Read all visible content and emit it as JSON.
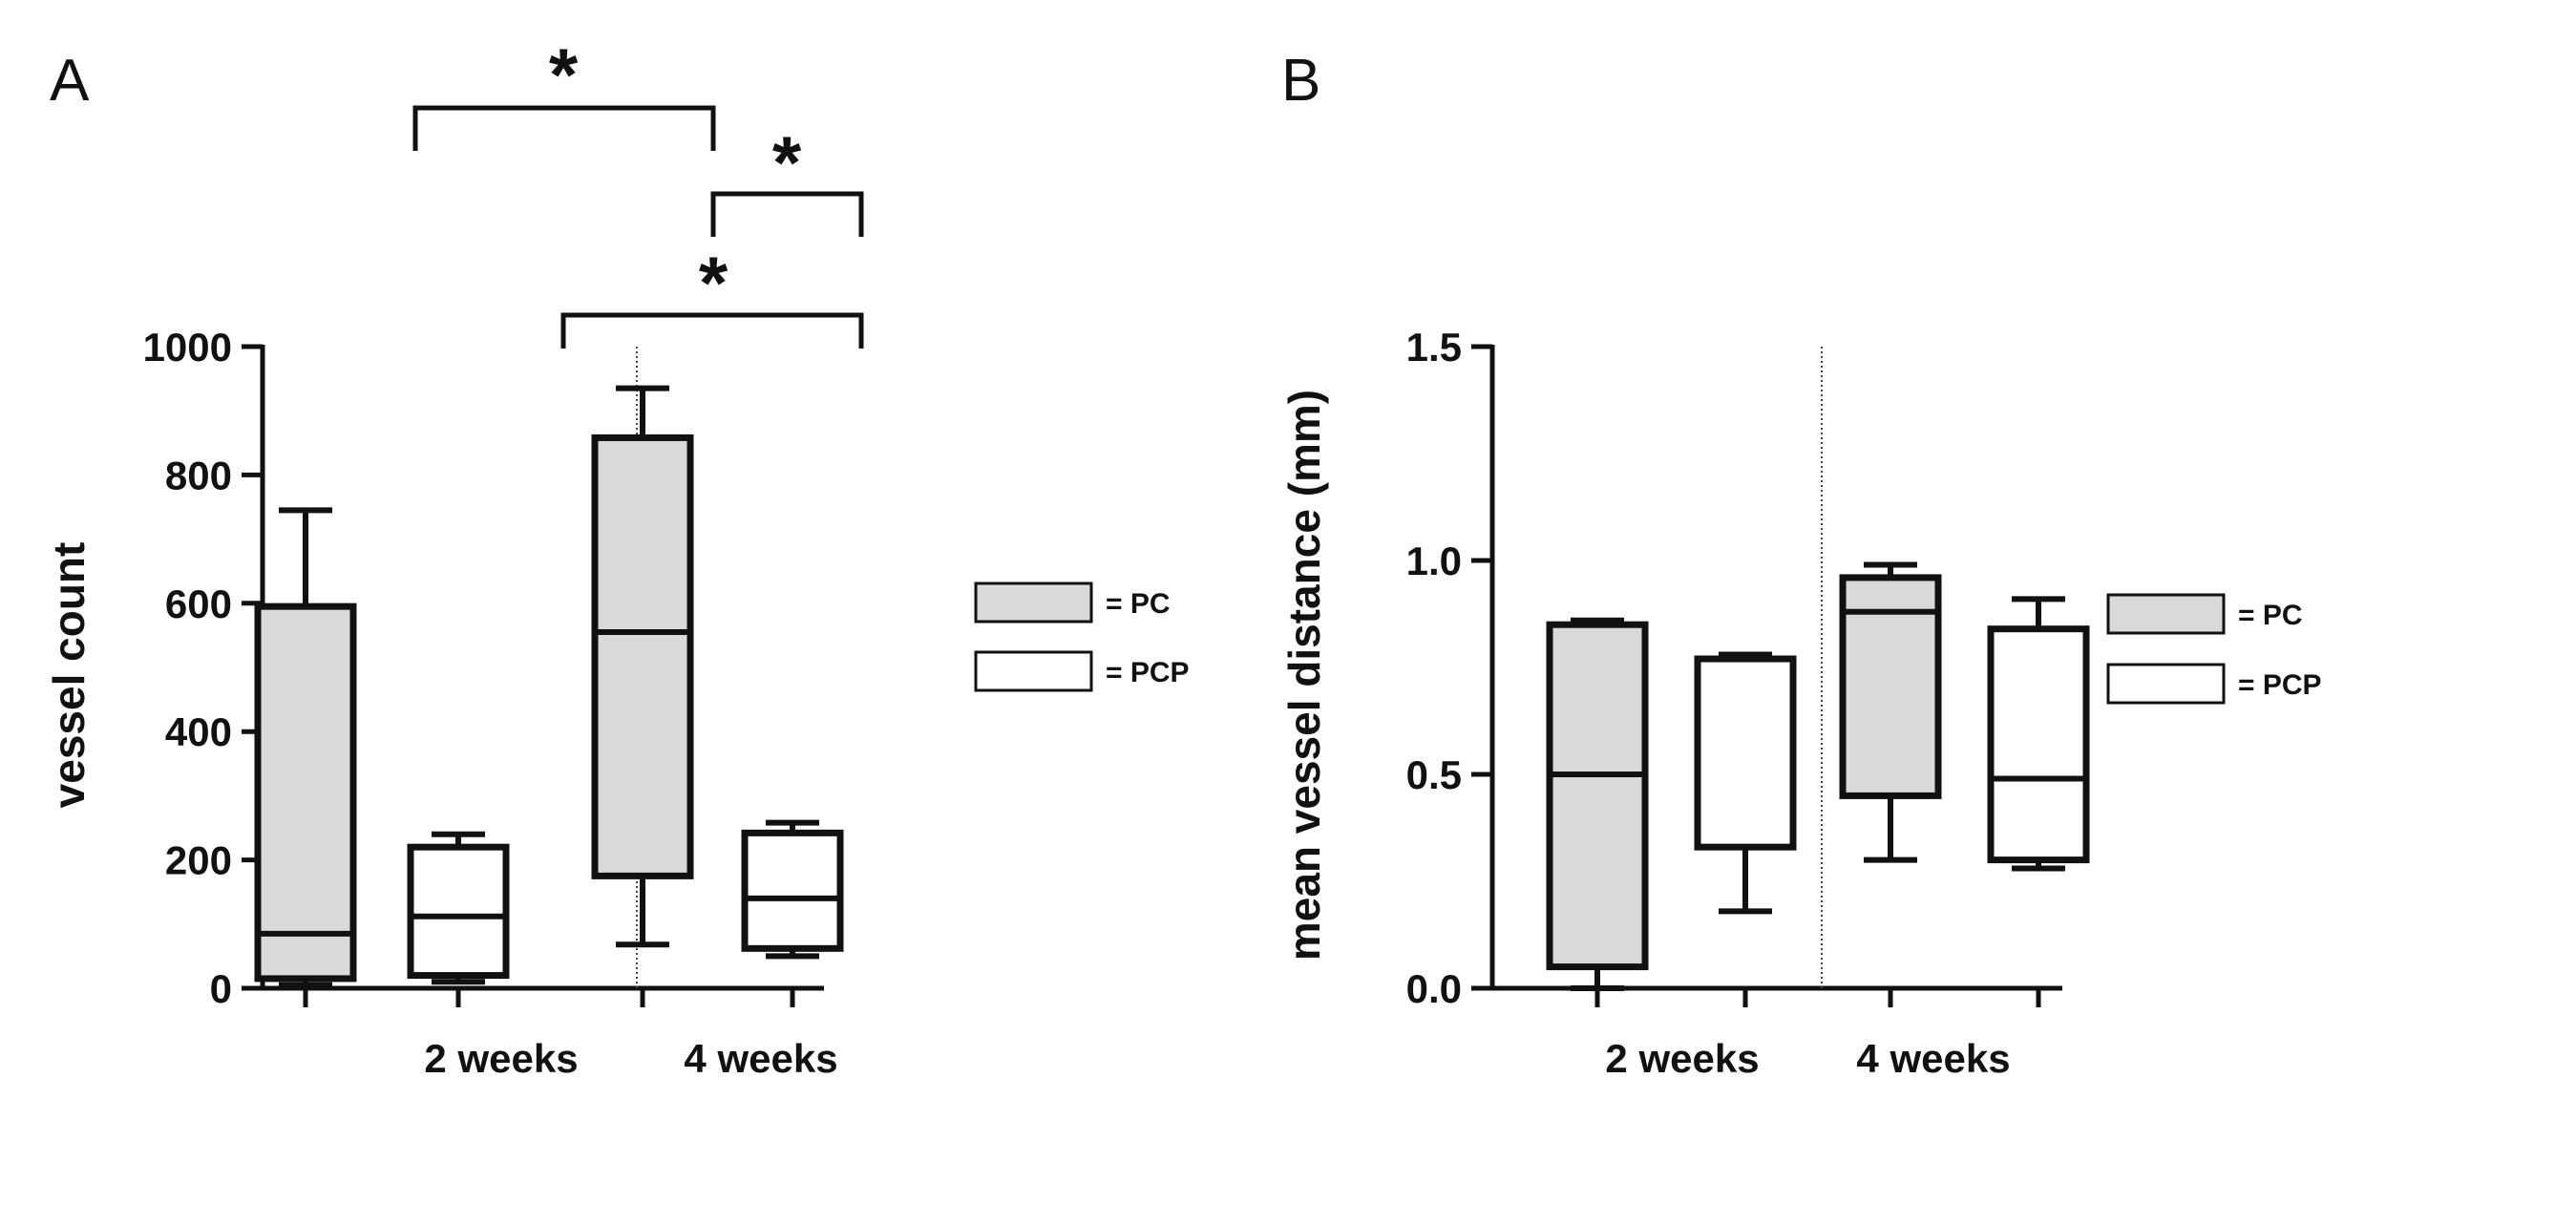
{
  "chart_data": [
    {
      "type": "box",
      "panel": "A",
      "ylabel": "vessel count",
      "xlabel": "",
      "ylim": [
        0,
        1000
      ],
      "yticks": [
        "0",
        "200",
        "400",
        "600",
        "800",
        "1000"
      ],
      "categories": [
        "2 weeks",
        "4 weeks"
      ],
      "series": [
        {
          "name": "= PC",
          "fill": "#d9d9d9",
          "boxes": [
            {
              "category": "2 weeks",
              "min": 5,
              "q1": 15,
              "median": 85,
              "q3": 595,
              "max": 745
            },
            {
              "category": "4 weeks",
              "min": 68,
              "q1": 175,
              "median": 555,
              "q3": 858,
              "max": 935
            }
          ]
        },
        {
          "name": "= PCP",
          "fill": "#ffffff",
          "boxes": [
            {
              "category": "2 weeks",
              "min": 10,
              "q1": 20,
              "median": 112,
              "q3": 220,
              "max": 240
            },
            {
              "category": "4 weeks",
              "min": 50,
              "q1": 62,
              "median": 140,
              "q3": 242,
              "max": 258
            }
          ]
        }
      ],
      "annotations": {
        "star": "*",
        "significance": [
          {
            "from": "2 weeks PC",
            "to": "4 weeks PC",
            "label": "*"
          },
          {
            "from": "4 weeks PC",
            "to": "4 weeks PCP",
            "label": "*"
          },
          {
            "from": "2 weeks PCP",
            "to": "4 weeks PCP",
            "label": "*"
          }
        ]
      }
    },
    {
      "type": "box",
      "panel": "B",
      "ylabel": "mean vessel distance (mm)",
      "xlabel": "",
      "ylim": [
        0,
        1.5
      ],
      "yticks": [
        "0.0",
        "0.5",
        "1.0",
        "1.5"
      ],
      "categories": [
        "2 weeks",
        "4 weeks"
      ],
      "series": [
        {
          "name": "= PC",
          "fill": "#d9d9d9",
          "boxes": [
            {
              "category": "2 weeks",
              "min": 0.0,
              "q1": 0.05,
              "median": 0.5,
              "q3": 0.85,
              "max": 0.86
            },
            {
              "category": "4 weeks",
              "min": 0.3,
              "q1": 0.45,
              "median": 0.88,
              "q3": 0.96,
              "max": 0.99
            }
          ]
        },
        {
          "name": "= PCP",
          "fill": "#ffffff",
          "boxes": [
            {
              "category": "2 weeks",
              "min": 0.18,
              "q1": 0.33,
              "median": 0.77,
              "q3": 0.77,
              "max": 0.78
            },
            {
              "category": "4 weeks",
              "min": 0.28,
              "q1": 0.3,
              "median": 0.49,
              "q3": 0.84,
              "max": 0.91
            }
          ]
        }
      ],
      "annotations": {
        "star": "",
        "significance": []
      }
    }
  ]
}
